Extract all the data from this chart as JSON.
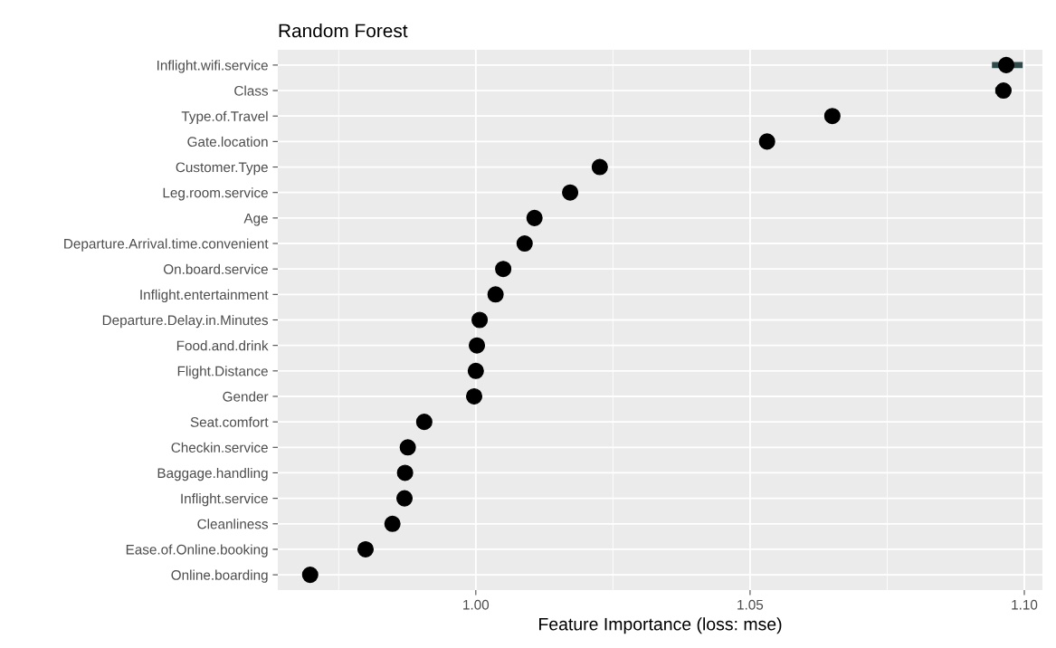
{
  "chart_data": {
    "type": "scatter",
    "orientation": "horizontal",
    "title": "Random Forest",
    "xlabel": "Feature Importance (loss: mse)",
    "categories": [
      "Inflight.wifi.service",
      "Class",
      "Type.of.Travel",
      "Gate.location",
      "Customer.Type",
      "Leg.room.service",
      "Age",
      "Departure.Arrival.time.convenient",
      "On.board.service",
      "Inflight.entertainment",
      "Departure.Delay.in.Minutes",
      "Food.and.drink",
      "Flight.Distance",
      "Gender",
      "Seat.comfort",
      "Checkin.service",
      "Baggage.handling",
      "Inflight.service",
      "Cleanliness",
      "Ease.of.Online.booking",
      "Online.boarding"
    ],
    "values": [
      1.0967,
      1.0962,
      1.065,
      1.0531,
      1.0226,
      1.0172,
      1.0107,
      1.0089,
      1.005,
      1.0036,
      1.0007,
      1.0002,
      1.0,
      0.9997,
      0.9906,
      0.9876,
      0.9871,
      0.987,
      0.9848,
      0.9799,
      0.9698
    ],
    "errors": [
      [
        1.0941,
        1.0997
      ],
      [
        1.0947,
        1.0975
      ],
      null,
      null,
      null,
      null,
      null,
      null,
      null,
      null,
      null,
      null,
      null,
      null,
      null,
      null,
      null,
      null,
      null,
      null,
      null
    ],
    "color": "#000000",
    "marker": "circle",
    "xlim": [
      0.9639,
      1.1033
    ],
    "xticks": [
      {
        "value": 0.975,
        "label": null
      },
      {
        "value": 1.0,
        "label": "1.00"
      },
      {
        "value": 1.025,
        "label": null
      },
      {
        "value": 1.05,
        "label": "1.05"
      },
      {
        "value": 1.075,
        "label": null
      },
      {
        "value": 1.1,
        "label": "1.10"
      }
    ],
    "grid": true
  }
}
